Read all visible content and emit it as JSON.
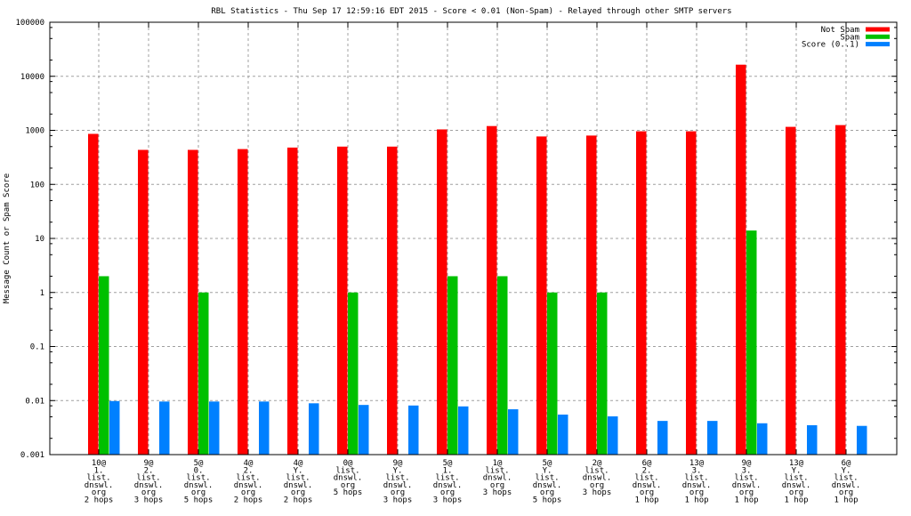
{
  "chart_data": {
    "type": "bar",
    "title": "RBL Statistics - Thu Sep 17 12:59:16 EDT 2015 - Score < 0.01 (Non-Spam) - Relayed through other SMTP servers",
    "xlabel": "",
    "ylabel": "Message Count or Spam Score",
    "yscale": "log",
    "ylim": [
      0.001,
      100000
    ],
    "yticks": [
      "0.001",
      "0.01",
      "0.1",
      "1",
      "10",
      "100",
      "1000",
      "10000",
      "100000"
    ],
    "grid": true,
    "legend_position": "top-right",
    "categories": [
      [
        "10@",
        "1.",
        "list.",
        "dnswl.",
        "org",
        "2 hops"
      ],
      [
        "9@",
        "2.",
        "list.",
        "dnswl.",
        "org",
        "3 hops"
      ],
      [
        "5@",
        "0.",
        "list.",
        "dnswl.",
        "org",
        "5 hops"
      ],
      [
        "4@",
        "2.",
        "list.",
        "dnswl.",
        "org",
        "2 hops"
      ],
      [
        "4@",
        "Y.",
        "list.",
        "dnswl.",
        "org",
        "2 hops"
      ],
      [
        "0@",
        "list.",
        "dnswl.",
        "org",
        "5 hops"
      ],
      [
        "9@",
        "Y.",
        "list.",
        "dnswl.",
        "org",
        "3 hops"
      ],
      [
        "5@",
        "1.",
        "list.",
        "dnswl.",
        "org",
        "3 hops"
      ],
      [
        "1@",
        "list.",
        "dnswl.",
        "org",
        "3 hops"
      ],
      [
        "5@",
        "Y.",
        "list.",
        "dnswl.",
        "org",
        "5 hops"
      ],
      [
        "2@",
        "list.",
        "dnswl.",
        "org",
        "3 hops"
      ],
      [
        "6@",
        "2.",
        "list.",
        "dnswl.",
        "org",
        "1 hop"
      ],
      [
        "13@",
        "3.",
        "list.",
        "dnswl.",
        "org",
        "1 hop"
      ],
      [
        "9@",
        "3.",
        "list.",
        "dnswl.",
        "org",
        "1 hop"
      ],
      [
        "13@",
        "Y.",
        "list.",
        "dnswl.",
        "org",
        "1 hop"
      ],
      [
        "6@",
        "Y.",
        "list.",
        "dnswl.",
        "org",
        "1 hop"
      ]
    ],
    "series": [
      {
        "name": "Not Spam",
        "color": "#ff0000",
        "values": [
          860,
          435,
          435,
          450,
          480,
          500,
          500,
          1040,
          1200,
          770,
          800,
          960,
          960,
          16400,
          1160,
          1250
        ]
      },
      {
        "name": "Spam",
        "color": "#00c000",
        "values": [
          2,
          0,
          1,
          0,
          0,
          1,
          0,
          2,
          2,
          1,
          1,
          0,
          0,
          14,
          0,
          0
        ]
      },
      {
        "name": "Score (0..1)",
        "color": "#0080ff",
        "values": [
          0.0098,
          0.0096,
          0.0096,
          0.0096,
          0.0089,
          0.0083,
          0.0081,
          0.0078,
          0.0069,
          0.0055,
          0.0051,
          0.0042,
          0.0042,
          0.0038,
          0.0035,
          0.0034
        ]
      }
    ]
  }
}
